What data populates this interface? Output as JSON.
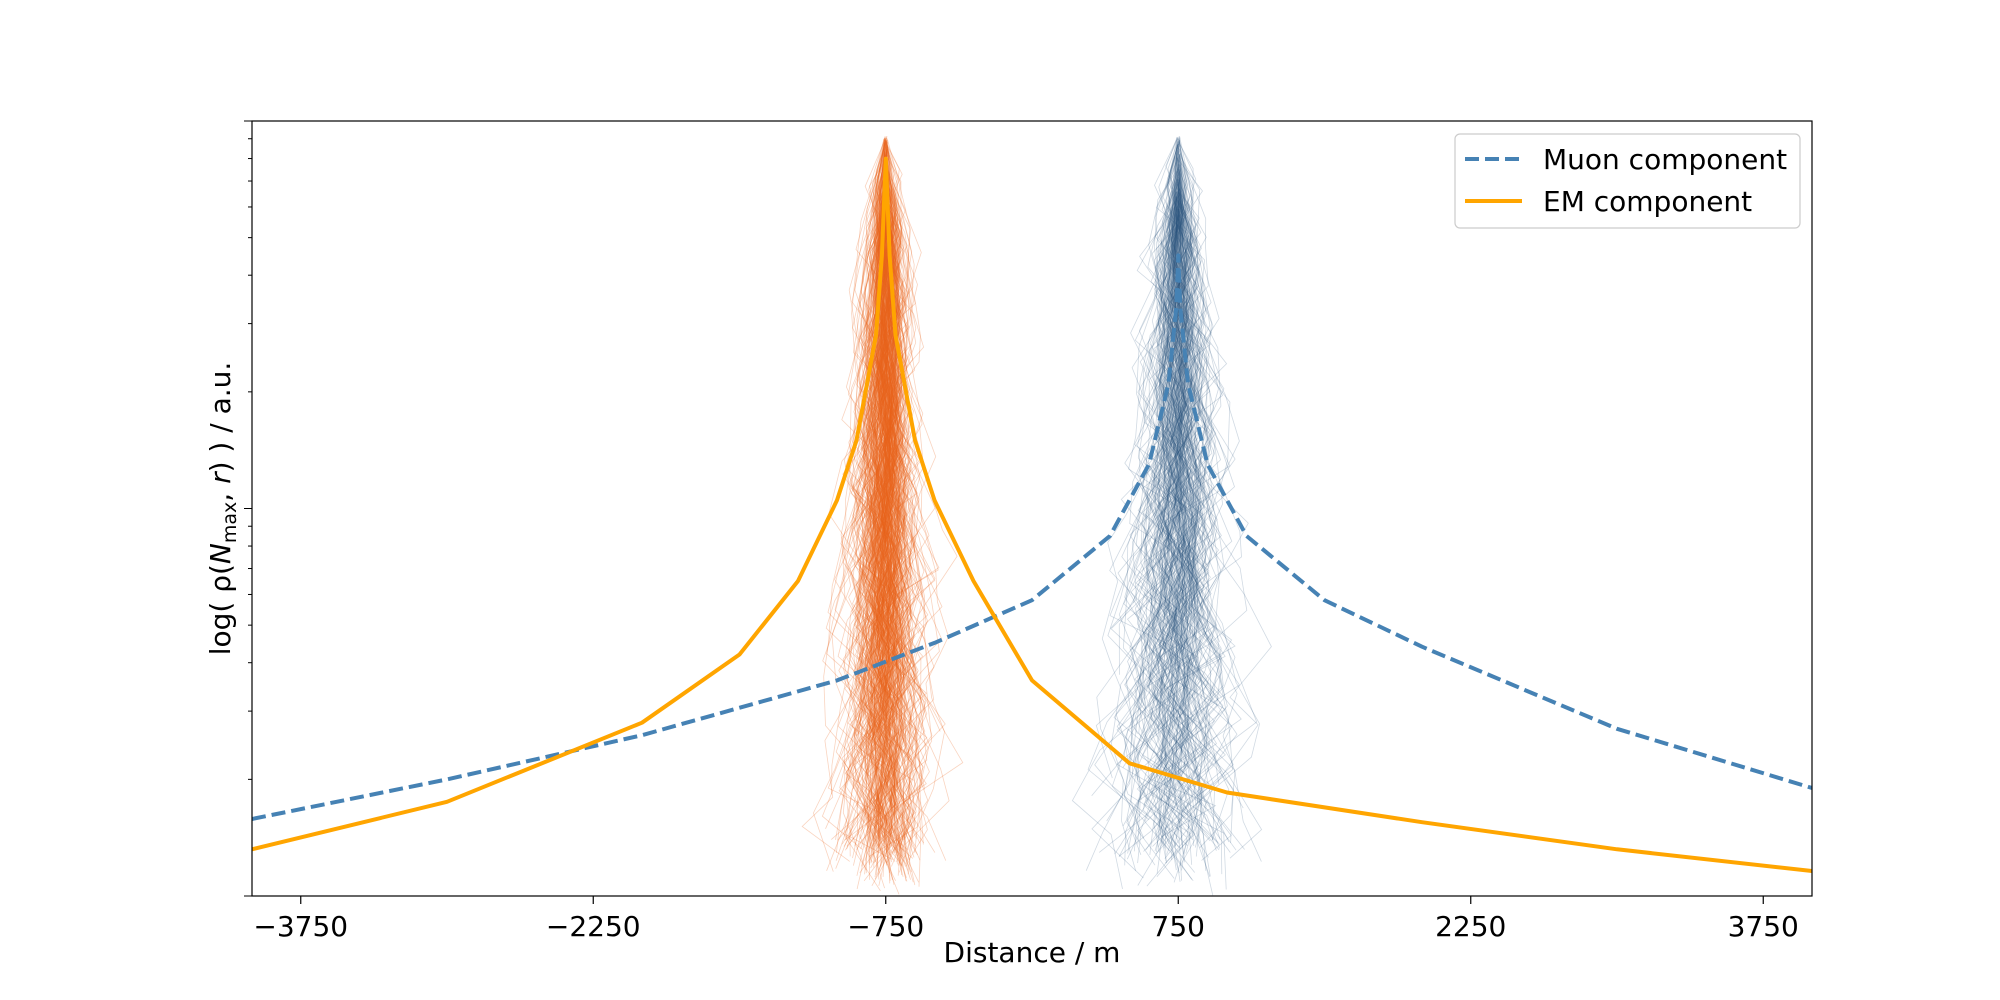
{
  "chart_data": {
    "type": "line",
    "xlabel": "Distance / m",
    "ylabel_parts": {
      "prefix": "log( ρ(",
      "var": "N",
      "sub": "max",
      "sep": ", ",
      "r": "r",
      "suffix": ") ) / a.u."
    },
    "xlim": [
      -4000,
      4000
    ],
    "ylim": [
      1,
      100
    ],
    "yscale": "log",
    "y_tick_labels_shown": false,
    "x_ticks": [
      -3750,
      -2250,
      -750,
      750,
      2250,
      3750
    ],
    "x_tick_labels": [
      "−3750",
      "−2250",
      "−750",
      "750",
      "2250",
      "3750"
    ],
    "grid": false,
    "legend_position": "top-right",
    "series": [
      {
        "name": "Muon component",
        "color": "#4682b4",
        "style": "dashed",
        "center": 750,
        "x": [
          -4000,
          -3000,
          -2000,
          -1000,
          -500,
          0,
          400,
          600,
          700,
          740,
          750,
          760,
          800,
          900,
          1100,
          1500,
          2000,
          3000,
          4000
        ],
        "y": [
          1.58,
          2.0,
          2.6,
          3.6,
          4.5,
          5.8,
          8.5,
          13,
          21,
          33,
          45,
          33,
          21,
          13,
          8.5,
          5.8,
          4.4,
          2.7,
          1.9
        ]
      },
      {
        "name": "EM component",
        "color": "#ffa500",
        "style": "solid",
        "center": -750,
        "x": [
          -4000,
          -3000,
          -2000,
          -1500,
          -1200,
          -1000,
          -900,
          -800,
          -770,
          -750,
          -730,
          -700,
          -600,
          -500,
          -300,
          0,
          500,
          1000,
          2000,
          3000,
          4000
        ],
        "y": [
          1.32,
          1.75,
          2.8,
          4.2,
          6.5,
          10.5,
          15,
          28,
          45,
          80,
          45,
          28,
          15,
          10.5,
          6.5,
          3.6,
          2.2,
          1.85,
          1.55,
          1.32,
          1.16
        ]
      }
    ],
    "background_tracks": [
      {
        "center": -750,
        "color": "#e8641e"
      },
      {
        "center": 750,
        "color": "#2f557f"
      }
    ]
  }
}
